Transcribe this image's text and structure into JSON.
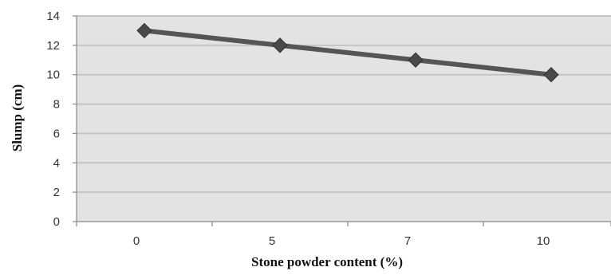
{
  "chart_data": {
    "type": "line",
    "categories": [
      "0",
      "5",
      "7",
      "10"
    ],
    "series": [
      {
        "values": [
          13,
          12,
          11,
          10
        ]
      }
    ],
    "xlabel": "Stone powder content (%)",
    "ylabel": "Slump (cm)",
    "ylim": [
      0,
      14
    ],
    "yticks": [
      "0",
      "2",
      "4",
      "6",
      "8",
      "10",
      "12",
      "14"
    ],
    "grid": true,
    "legend": "none",
    "colors": {
      "plot_background": "#e3e3e3",
      "gridline": "#c4c4c4",
      "line": "#555555",
      "marker": "#4a4a4a",
      "axis": "#888888"
    }
  }
}
